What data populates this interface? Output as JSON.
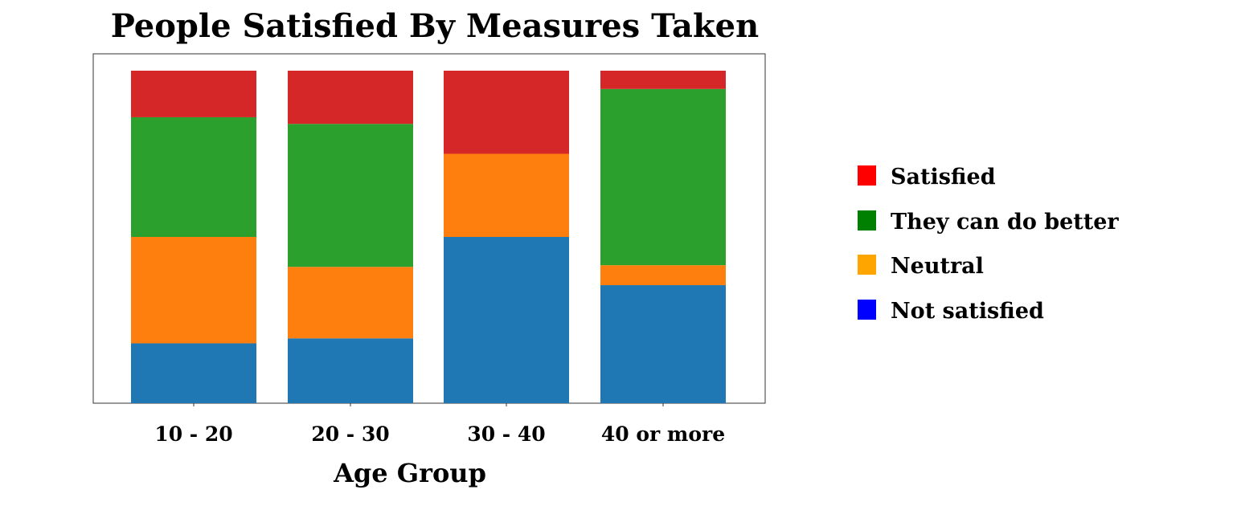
{
  "chart_data": {
    "type": "bar",
    "stacked": true,
    "normalized": true,
    "title": "People Satisfied By Measures Taken",
    "xlabel": "Age Group",
    "ylabel": "",
    "ylim": [
      0,
      100
    ],
    "grid": false,
    "legend_position": "right",
    "categories": [
      "10 - 20",
      "20 - 30",
      "30 - 40",
      "40 or more"
    ],
    "series": [
      {
        "name": "Not satisfied",
        "color": "#1f77b4",
        "values": [
          18,
          19.5,
          50,
          35.5
        ]
      },
      {
        "name": "Neutral",
        "color": "#ff7f0e",
        "values": [
          32,
          21.5,
          25,
          6
        ]
      },
      {
        "name": "They can do better",
        "color": "#2ca02c",
        "values": [
          36,
          43,
          0,
          53
        ]
      },
      {
        "name": "Satisfied",
        "color": "#d62728",
        "values": [
          14,
          16,
          25,
          5.5
        ]
      }
    ],
    "legend": [
      {
        "label": "Satisfied",
        "color": "#ff0000"
      },
      {
        "label": "They can do better",
        "color": "#008000"
      },
      {
        "label": "Neutral",
        "color": "#ffa500"
      },
      {
        "label": "Not satisfied",
        "color": "#0000ff"
      }
    ]
  }
}
